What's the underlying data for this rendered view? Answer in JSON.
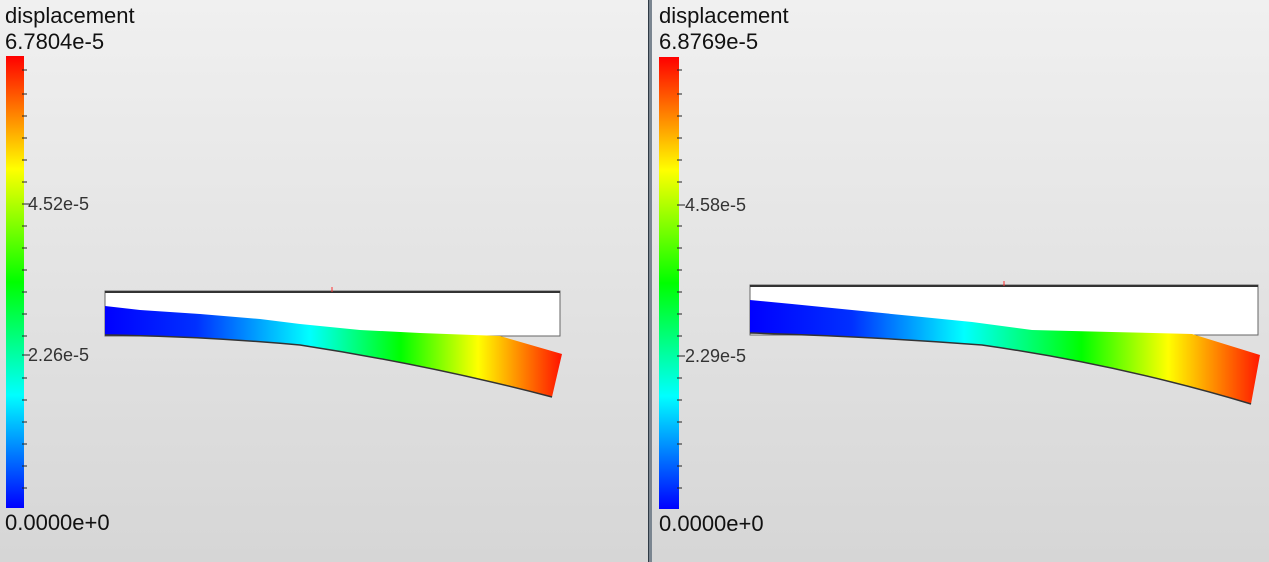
{
  "left_view": {
    "legend": {
      "title": "displacement",
      "max": "6.7804e-5",
      "min": "0.0000e+0",
      "tick_upper": "4.52e-5",
      "tick_lower": "2.26e-5"
    }
  },
  "right_view": {
    "legend": {
      "title": "displacement",
      "max": "6.8769e-5",
      "min": "0.0000e+0",
      "tick_upper": "4.58e-5",
      "tick_lower": "2.29e-5"
    }
  },
  "colors": {
    "colormap": [
      "#0000ff",
      "#00ffff",
      "#00ff00",
      "#ffff00",
      "#ff0000"
    ],
    "undeformed_beam": "#ffffff",
    "background_top": "#f0f0f0",
    "background_bottom": "#d6d6d6"
  }
}
